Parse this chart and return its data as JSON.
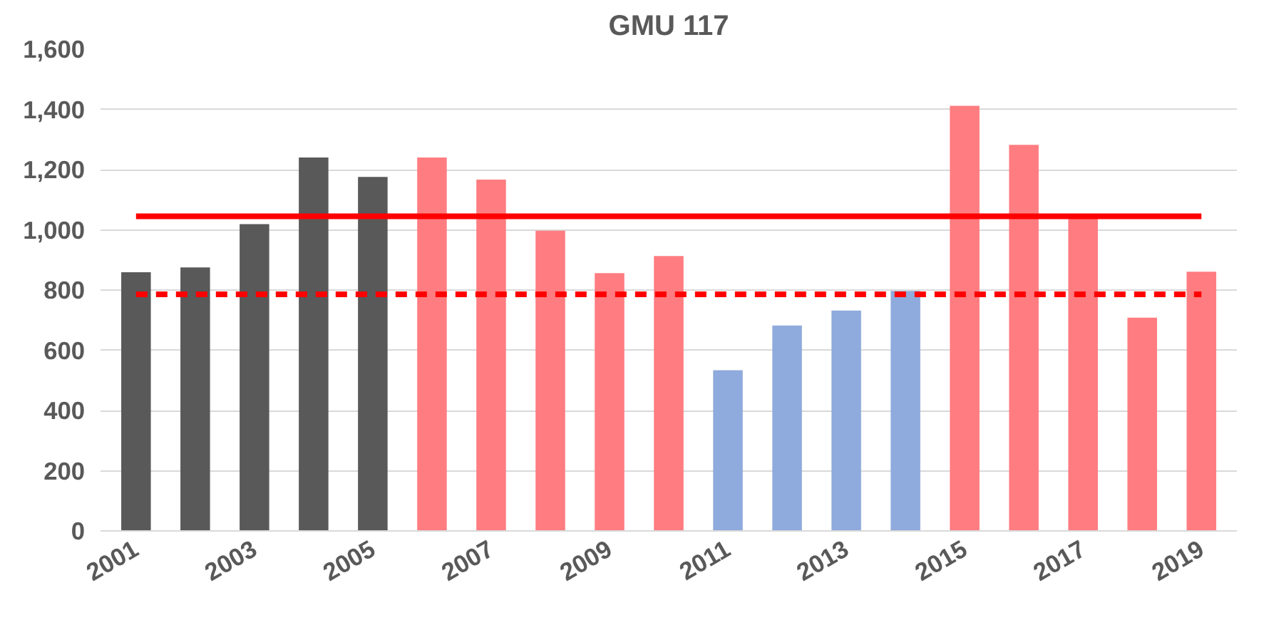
{
  "chart_data": {
    "type": "bar",
    "title": "GMU 117",
    "categories": [
      "2001",
      null,
      "2003",
      null,
      "2005",
      null,
      "2007",
      null,
      "2009",
      null,
      "2011",
      null,
      "2013",
      null,
      "2015",
      null,
      "2017",
      null,
      "2019"
    ],
    "values": [
      859,
      875,
      1019,
      1240,
      1176,
      1240,
      1167,
      997,
      856,
      913,
      534,
      682,
      732,
      797,
      1412,
      1282,
      1038,
      708,
      861
    ],
    "colors": [
      "#595959",
      "#595959",
      "#595959",
      "#595959",
      "#595959",
      "#ff7c80",
      "#ff7c80",
      "#ff7c80",
      "#ff7c80",
      "#ff7c80",
      "#8faadc",
      "#8faadc",
      "#8faadc",
      "#8faadc",
      "#ff7c80",
      "#ff7c80",
      "#ff7c80",
      "#ff7c80",
      "#ff7c80"
    ],
    "ylim": [
      0,
      1600
    ],
    "yticks": [
      0,
      200,
      400,
      600,
      800,
      {
        "value": 1000,
        "label": "1,000"
      },
      {
        "value": 1200,
        "label": "1,200"
      },
      {
        "value": 1400,
        "label": "1,400"
      },
      {
        "value": 1600,
        "label": "1,600"
      }
    ],
    "ref_lines": [
      {
        "axis": "y",
        "value": 1045,
        "label": null,
        "color": "#ff0000",
        "line_style": "solid"
      },
      {
        "axis": "y",
        "value": 786,
        "label": null,
        "color": "#ff0000",
        "line_style": "dashed"
      }
    ],
    "grid": "y"
  }
}
